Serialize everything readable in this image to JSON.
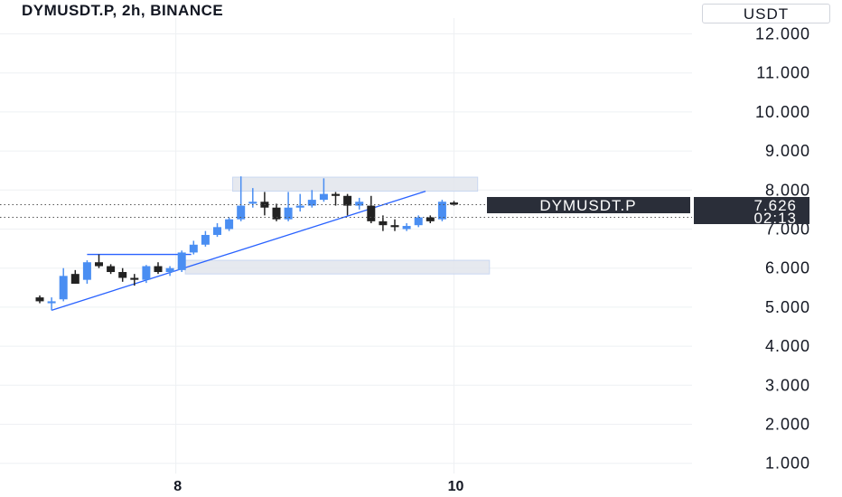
{
  "header": {
    "title": "DYMUSDT.P, 2h, BINANCE",
    "currency": "USDT"
  },
  "price_tag": {
    "symbol": "DYMUSDT.P",
    "price": "7.626",
    "countdown": "02:13"
  },
  "colors": {
    "up": "#4a8ef2",
    "down": "#222222",
    "trendline": "#2962ff",
    "zone_fill": "#e4e7ee",
    "zone_stroke": "#c5d4f0",
    "tag_bg": "#2a2e39",
    "grid": "#eef0f3"
  },
  "chart_data": {
    "type": "candlestick",
    "title": "DYMUSDT.P, 2h, BINANCE",
    "y_ticks": [
      "1.000",
      "2.000",
      "3.000",
      "4.000",
      "5.000",
      "6.000",
      "7.000",
      "8.000",
      "9.000",
      "10.000",
      "11.000",
      "12.000"
    ],
    "ylim": [
      1.0,
      12.0
    ],
    "x_ticks": [
      {
        "label": "8",
        "index": 11.5
      },
      {
        "label": "10",
        "index": 35
      }
    ],
    "candles": [
      {
        "o": 5.25,
        "h": 5.3,
        "l": 5.1,
        "c": 5.15
      },
      {
        "o": 5.1,
        "h": 5.25,
        "l": 4.92,
        "c": 5.15
      },
      {
        "o": 5.2,
        "h": 6.0,
        "l": 5.15,
        "c": 5.8
      },
      {
        "o": 5.85,
        "h": 5.95,
        "l": 5.6,
        "c": 5.6
      },
      {
        "o": 5.7,
        "h": 6.2,
        "l": 5.6,
        "c": 6.15
      },
      {
        "o": 6.15,
        "h": 6.35,
        "l": 6.0,
        "c": 6.05
      },
      {
        "o": 6.05,
        "h": 6.1,
        "l": 5.85,
        "c": 5.9
      },
      {
        "o": 5.9,
        "h": 6.0,
        "l": 5.65,
        "c": 5.75
      },
      {
        "o": 5.75,
        "h": 5.85,
        "l": 5.55,
        "c": 5.7
      },
      {
        "o": 5.7,
        "h": 6.08,
        "l": 5.62,
        "c": 6.05
      },
      {
        "o": 6.05,
        "h": 6.15,
        "l": 5.85,
        "c": 5.9
      },
      {
        "o": 5.9,
        "h": 6.05,
        "l": 5.8,
        "c": 6.0
      },
      {
        "o": 5.95,
        "h": 6.45,
        "l": 5.9,
        "c": 6.4
      },
      {
        "o": 6.4,
        "h": 6.7,
        "l": 6.35,
        "c": 6.6
      },
      {
        "o": 6.6,
        "h": 6.95,
        "l": 6.55,
        "c": 6.85
      },
      {
        "o": 6.85,
        "h": 7.15,
        "l": 6.8,
        "c": 7.05
      },
      {
        "o": 7.0,
        "h": 7.3,
        "l": 6.95,
        "c": 7.25
      },
      {
        "o": 7.25,
        "h": 8.35,
        "l": 7.2,
        "c": 7.6
      },
      {
        "o": 7.65,
        "h": 8.05,
        "l": 7.55,
        "c": 7.7
      },
      {
        "o": 7.7,
        "h": 7.95,
        "l": 7.35,
        "c": 7.55
      },
      {
        "o": 7.55,
        "h": 7.65,
        "l": 7.2,
        "c": 7.25
      },
      {
        "o": 7.25,
        "h": 7.95,
        "l": 7.2,
        "c": 7.55
      },
      {
        "o": 7.55,
        "h": 7.9,
        "l": 7.45,
        "c": 7.6
      },
      {
        "o": 7.6,
        "h": 8.0,
        "l": 7.55,
        "c": 7.75
      },
      {
        "o": 7.75,
        "h": 8.3,
        "l": 7.7,
        "c": 7.9
      },
      {
        "o": 7.9,
        "h": 7.95,
        "l": 7.6,
        "c": 7.85
      },
      {
        "o": 7.85,
        "h": 7.9,
        "l": 7.35,
        "c": 7.6
      },
      {
        "o": 7.6,
        "h": 7.8,
        "l": 7.5,
        "c": 7.7
      },
      {
        "o": 7.6,
        "h": 7.85,
        "l": 7.15,
        "c": 7.2
      },
      {
        "o": 7.2,
        "h": 7.35,
        "l": 6.95,
        "c": 7.1
      },
      {
        "o": 7.1,
        "h": 7.25,
        "l": 6.95,
        "c": 7.05
      },
      {
        "o": 7.0,
        "h": 7.15,
        "l": 6.95,
        "c": 7.08
      },
      {
        "o": 7.1,
        "h": 7.35,
        "l": 7.05,
        "c": 7.3
      },
      {
        "o": 7.3,
        "h": 7.35,
        "l": 7.15,
        "c": 7.2
      },
      {
        "o": 7.25,
        "h": 7.75,
        "l": 7.2,
        "c": 7.7
      },
      {
        "o": 7.68,
        "h": 7.72,
        "l": 7.6,
        "c": 7.63
      }
    ],
    "current_price": 7.626,
    "zones": [
      {
        "name": "supply-zone",
        "y1": 7.97,
        "y2": 8.33,
        "i1": 16.3,
        "i2": 37.0
      },
      {
        "name": "demand-zone",
        "y1": 5.85,
        "y2": 6.2,
        "i1": 12.3,
        "i2": 38.0
      }
    ],
    "trendline": {
      "i1": 1.0,
      "y1": 4.92,
      "i2": 32.6,
      "y2": 7.97
    },
    "flat_line": {
      "i1": 4.0,
      "i2": 12.8,
      "y": 6.35
    },
    "grid": true
  }
}
